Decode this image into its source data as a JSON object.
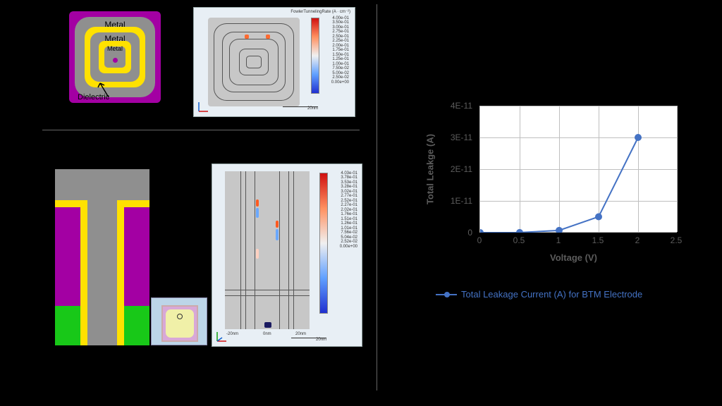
{
  "background_color": "#000000",
  "device_top": {
    "substrate_color": "#a300a3",
    "metal_color": "#8f8f8f",
    "dielectric_color": "#ffe100",
    "labels": {
      "m1": "Metal",
      "m2": "Metal",
      "m3": "Metal",
      "dielec": "Dielectric"
    }
  },
  "sim_top": {
    "colorbar_label": "FowlerTunnelingRate (A · cm⁻²)",
    "ticks": [
      "4.00e-01",
      "3.50e-01",
      "3.00e-01",
      "2.75e-01",
      "2.50e-01",
      "2.25e-01",
      "2.00e-01",
      "1.75e-01",
      "1.50e-01",
      "1.25e-01",
      "1.00e-01",
      "7.50e-02",
      "5.00e-02",
      "2.50e-02",
      "0.00e+00"
    ],
    "scale_label": "20nm"
  },
  "sim_bottom": {
    "ticks": [
      "4.03e-01",
      "3.78e-01",
      "3.53e-01",
      "3.28e-01",
      "3.02e-01",
      "2.77e-01",
      "2.52e-01",
      "2.27e-01",
      "2.02e-01",
      "1.76e-01",
      "1.51e-01",
      "1.26e-01",
      "1.01e-01",
      "7.56e-02",
      "5.04e-02",
      "2.52e-02",
      "0.00e+00"
    ],
    "xaxis_ticks": [
      "-20nm",
      "0nm",
      "20nm"
    ],
    "scale_label": "20nm"
  },
  "cross_section": {
    "colors": {
      "substrate": "#a300a3",
      "metal": "#8f8f8f",
      "dielectric": "#ffe100",
      "base": "#18c818"
    }
  },
  "chart": {
    "type": "line",
    "title": "",
    "xlabel": "Voltage (V)",
    "ylabel": "Total Leakge (A)",
    "legend_label": "Total Leakage Current (A) for BTM Electrode",
    "series_color": "#4472c4",
    "grid_color": "#bfbfbf",
    "background_color": "#ffffff",
    "xlim": [
      0,
      2.5
    ],
    "ylim": [
      0,
      4e-11
    ],
    "xticks": [
      0,
      0.5,
      1,
      1.5,
      2,
      2.5
    ],
    "yticks": [
      0,
      1e-11,
      2e-11,
      3e-11,
      4e-11
    ],
    "ytick_labels": [
      "0",
      "1E-11",
      "2E-11",
      "3E-11",
      "4E-11"
    ],
    "xtick_labels": [
      "0",
      "0.5",
      "1",
      "1.5",
      "2",
      "2.5"
    ],
    "points": [
      {
        "x": 0,
        "y": 0
      },
      {
        "x": 0.5,
        "y": 2e-14
      },
      {
        "x": 1,
        "y": 7e-13
      },
      {
        "x": 1.5,
        "y": 5e-12
      },
      {
        "x": 2,
        "y": 3e-11
      }
    ],
    "marker_size": 5,
    "line_width": 2,
    "label_fontsize": 13
  }
}
